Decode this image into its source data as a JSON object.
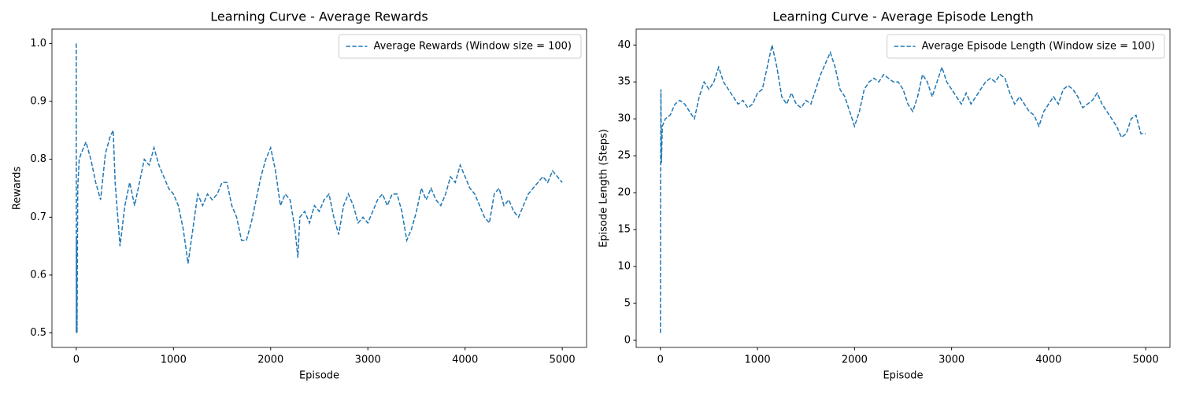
{
  "chart_data": [
    {
      "type": "line",
      "title": "Learning Curve - Average Rewards",
      "xlabel": "Episode",
      "ylabel": "Rewards",
      "x": [
        0,
        1,
        2,
        4,
        8,
        15,
        30,
        50,
        100,
        150,
        200,
        250,
        300,
        350,
        380,
        400,
        450,
        500,
        550,
        600,
        650,
        700,
        750,
        800,
        850,
        900,
        950,
        1000,
        1050,
        1100,
        1150,
        1200,
        1250,
        1300,
        1350,
        1400,
        1450,
        1500,
        1550,
        1600,
        1650,
        1700,
        1750,
        1800,
        1850,
        1900,
        1950,
        2000,
        2050,
        2100,
        2150,
        2200,
        2250,
        2280,
        2300,
        2350,
        2400,
        2450,
        2500,
        2550,
        2600,
        2650,
        2700,
        2750,
        2800,
        2850,
        2900,
        2950,
        3000,
        3050,
        3100,
        3150,
        3200,
        3250,
        3300,
        3350,
        3400,
        3450,
        3500,
        3550,
        3600,
        3650,
        3700,
        3750,
        3800,
        3850,
        3900,
        3950,
        4000,
        4050,
        4100,
        4150,
        4200,
        4250,
        4300,
        4350,
        4400,
        4450,
        4500,
        4550,
        4600,
        4650,
        4700,
        4750,
        4800,
        4850,
        4900,
        4950,
        4999
      ],
      "series": [
        {
          "name": "Average Rewards (Window size = 100)",
          "color": "#1f77b4",
          "values": [
            1.0,
            0.5,
            0.667,
            0.6,
            0.5,
            0.75,
            0.8,
            0.81,
            0.83,
            0.8,
            0.76,
            0.73,
            0.81,
            0.84,
            0.85,
            0.76,
            0.65,
            0.72,
            0.76,
            0.72,
            0.76,
            0.8,
            0.79,
            0.82,
            0.79,
            0.77,
            0.75,
            0.74,
            0.72,
            0.68,
            0.62,
            0.68,
            0.74,
            0.72,
            0.74,
            0.73,
            0.74,
            0.76,
            0.76,
            0.72,
            0.7,
            0.66,
            0.66,
            0.69,
            0.73,
            0.77,
            0.8,
            0.82,
            0.78,
            0.72,
            0.74,
            0.73,
            0.68,
            0.63,
            0.7,
            0.71,
            0.69,
            0.72,
            0.71,
            0.73,
            0.74,
            0.7,
            0.67,
            0.72,
            0.74,
            0.72,
            0.69,
            0.7,
            0.69,
            0.71,
            0.73,
            0.74,
            0.72,
            0.74,
            0.74,
            0.71,
            0.66,
            0.68,
            0.71,
            0.75,
            0.73,
            0.75,
            0.73,
            0.72,
            0.74,
            0.77,
            0.76,
            0.79,
            0.77,
            0.75,
            0.74,
            0.72,
            0.7,
            0.69,
            0.74,
            0.75,
            0.72,
            0.73,
            0.71,
            0.7,
            0.72,
            0.74,
            0.75,
            0.76,
            0.77,
            0.76,
            0.78,
            0.77,
            0.76
          ]
        }
      ],
      "xlim": [
        -250,
        5250
      ],
      "ylim": [
        0.475,
        1.025
      ],
      "xticks": [
        0,
        1000,
        2000,
        3000,
        4000,
        5000
      ],
      "yticks": [
        0.5,
        0.6,
        0.7,
        0.8,
        0.9,
        {
          "value": 1,
          "label": "1.0"
        }
      ],
      "legend": "upper right",
      "linestyle": "dashed"
    },
    {
      "type": "line",
      "title": "Learning Curve - Average Episode Length",
      "xlabel": "Episode",
      "ylabel": "Episode Length (Steps)",
      "x": [
        0,
        2,
        5,
        10,
        20,
        50,
        100,
        150,
        200,
        250,
        300,
        350,
        400,
        450,
        500,
        550,
        600,
        650,
        700,
        750,
        800,
        850,
        900,
        950,
        1000,
        1050,
        1100,
        1150,
        1200,
        1250,
        1300,
        1350,
        1400,
        1450,
        1500,
        1550,
        1600,
        1650,
        1700,
        1750,
        1800,
        1850,
        1900,
        1950,
        2000,
        2050,
        2100,
        2150,
        2200,
        2250,
        2300,
        2350,
        2400,
        2450,
        2500,
        2550,
        2600,
        2650,
        2700,
        2750,
        2800,
        2850,
        2900,
        2950,
        3000,
        3050,
        3100,
        3150,
        3200,
        3250,
        3300,
        3350,
        3400,
        3450,
        3500,
        3550,
        3600,
        3650,
        3700,
        3750,
        3800,
        3850,
        3900,
        3950,
        4000,
        4050,
        4100,
        4150,
        4200,
        4250,
        4300,
        4350,
        4400,
        4450,
        4500,
        4550,
        4600,
        4650,
        4700,
        4750,
        4800,
        4850,
        4900,
        4950,
        4999
      ],
      "series": [
        {
          "name": "Average Episode Length (Window size = 100)",
          "color": "#1f77b4",
          "values": [
            1,
            23,
            34,
            24,
            29,
            30,
            30.5,
            32,
            32.5,
            32,
            31,
            30,
            33,
            35,
            34,
            35,
            37,
            35,
            34,
            33,
            32,
            32.5,
            31.5,
            32,
            33.5,
            34,
            37,
            40,
            37,
            33,
            32,
            33.5,
            32,
            31.5,
            32.5,
            32,
            34,
            36,
            37.5,
            39,
            37,
            34,
            33,
            31,
            29,
            31,
            34,
            35,
            35.5,
            35,
            36,
            35.5,
            35,
            35,
            34,
            32,
            31,
            33,
            36,
            35,
            33,
            35,
            37,
            35,
            34,
            33,
            32,
            33.5,
            32,
            33,
            34,
            35,
            35.5,
            35,
            36,
            35.5,
            33.5,
            32,
            33,
            32,
            31,
            30.5,
            29,
            31,
            32,
            33,
            32,
            34,
            34.5,
            34,
            33,
            31.5,
            32,
            32.5,
            33.5,
            32,
            31,
            30,
            29,
            27.5,
            28,
            30,
            30.5,
            28,
            28
          ]
        }
      ],
      "xlim": [
        -250,
        5250
      ],
      "ylim": [
        -0.96,
        42.16
      ],
      "xticks": [
        0,
        1000,
        2000,
        3000,
        4000,
        5000
      ],
      "yticks": [
        0,
        5,
        10,
        15,
        20,
        25,
        30,
        35,
        40
      ],
      "legend": "upper right",
      "linestyle": "dashed"
    }
  ]
}
